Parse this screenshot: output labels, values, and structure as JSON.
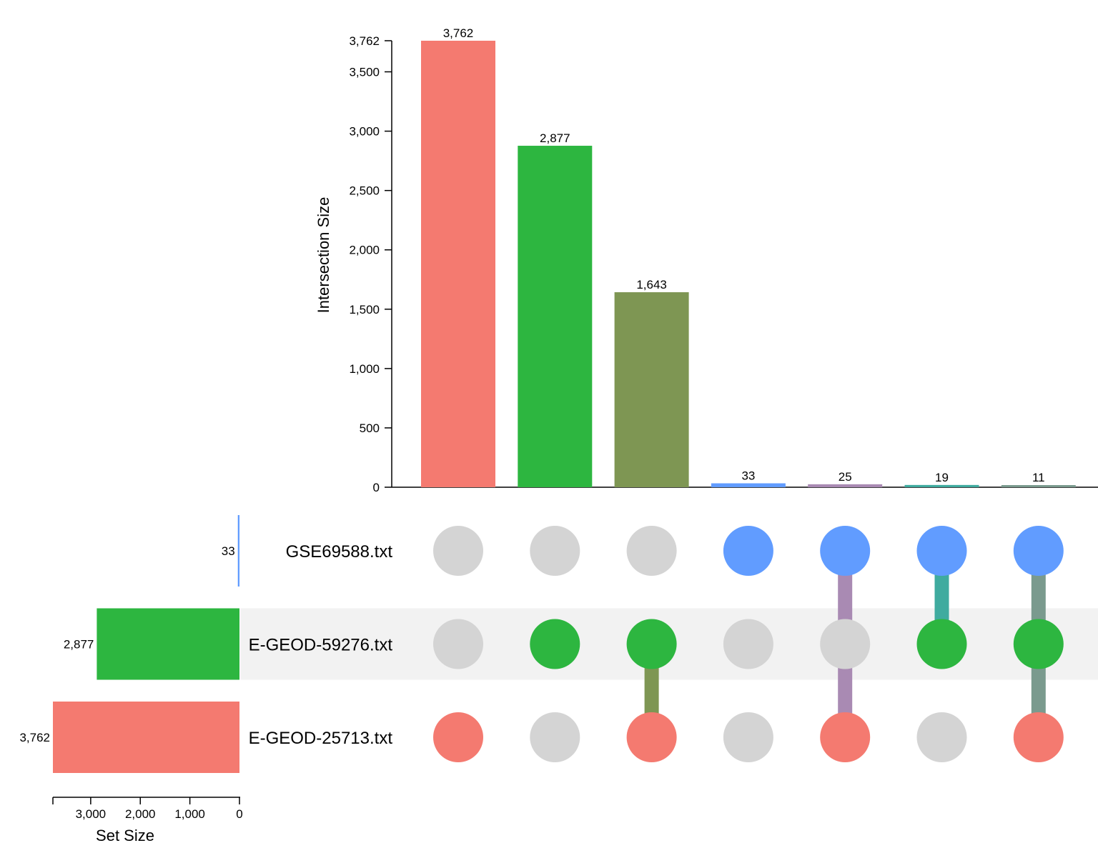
{
  "chart_data": {
    "type": "upset",
    "intersection_axis": {
      "label": "Intersection Size",
      "ylim": [
        0,
        3762
      ],
      "ticks": [
        0,
        500,
        1000,
        1500,
        2000,
        2500,
        3000,
        3500,
        3762
      ],
      "tick_labels": [
        "0",
        "500",
        "1,000",
        "1,500",
        "2,000",
        "2,500",
        "3,000",
        "3,500",
        "3,762"
      ]
    },
    "sets": [
      {
        "name": "GSE69588.txt",
        "size": 33,
        "size_label": "33",
        "color": "#619cff",
        "shaded": false
      },
      {
        "name": "E-GEOD-59276.txt",
        "size": 2877,
        "size_label": "2,877",
        "color": "#2db640",
        "shaded": true
      },
      {
        "name": "E-GEOD-25713.txt",
        "size": 3762,
        "size_label": "3,762",
        "color": "#f47a70",
        "shaded": false
      }
    ],
    "set_size_axis": {
      "label": "Set Size",
      "max": 3762,
      "ticks": [
        3000,
        2000,
        1000,
        0
      ],
      "tick_labels": [
        "3,000",
        "2,000",
        "1,000",
        "0"
      ],
      "axis_color": "#000000"
    },
    "intersections": [
      {
        "value": 3762,
        "value_label": "3,762",
        "color": "#f47a70",
        "members": [
          2
        ]
      },
      {
        "value": 2877,
        "value_label": "2,877",
        "color": "#2db640",
        "members": [
          1
        ]
      },
      {
        "value": 1643,
        "value_label": "1,643",
        "color": "#7e9653",
        "members": [
          1,
          2
        ]
      },
      {
        "value": 33,
        "value_label": "33",
        "color": "#619cff",
        "members": [
          0
        ]
      },
      {
        "value": 25,
        "value_label": "25",
        "color": "#a98ab3",
        "members": [
          0,
          2
        ]
      },
      {
        "value": 19,
        "value_label": "19",
        "color": "#3fab9f",
        "members": [
          0,
          1
        ]
      },
      {
        "value": 11,
        "value_label": "11",
        "color": "#7a9a8e",
        "members": [
          0,
          1,
          2
        ]
      }
    ],
    "inactive_dot_color": "#d4d4d4",
    "shade_color": "#f2f2f2"
  }
}
